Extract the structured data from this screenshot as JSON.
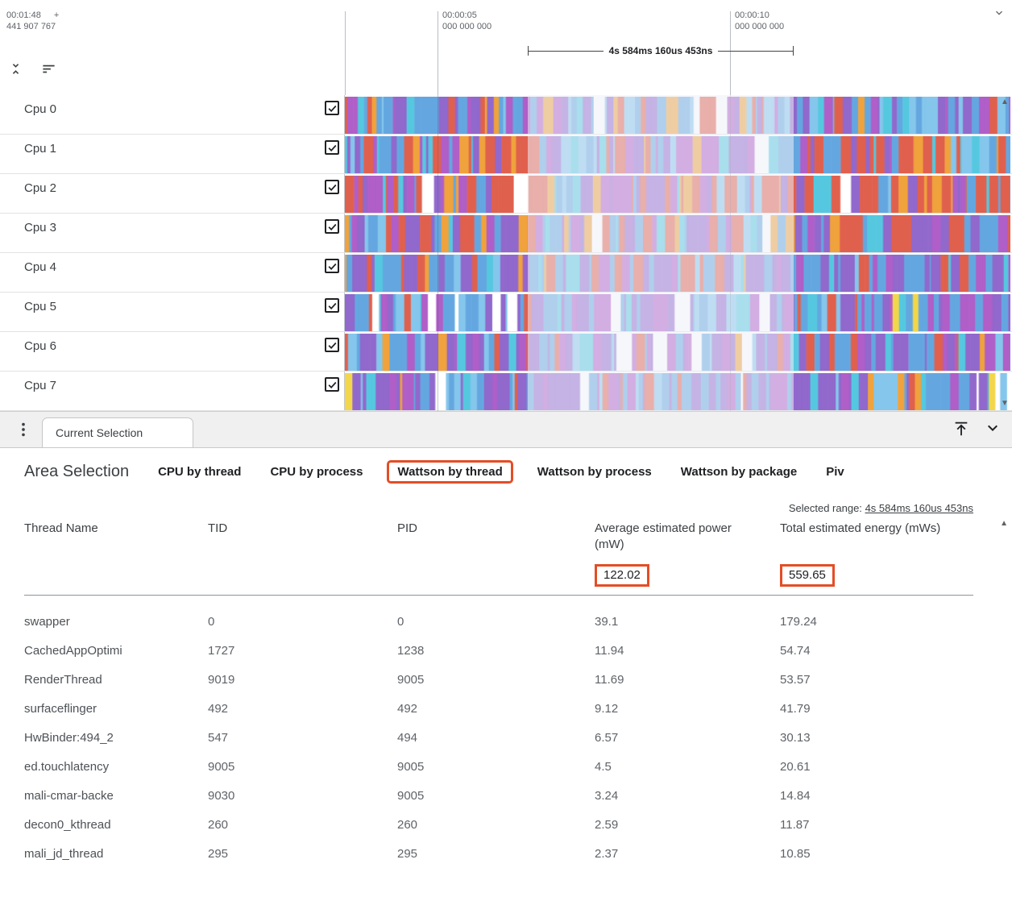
{
  "accent": "#e44d26",
  "icons": {
    "scroll_up": "▲",
    "scroll_down": "▼"
  },
  "timeline": {
    "origin_time": "00:01:48",
    "origin_plus": "+",
    "origin_ns": "441 907 767",
    "ticks": [
      {
        "time": "00:00:05",
        "ns": "000 000 000"
      },
      {
        "time": "00:00:10",
        "ns": "000 000 000"
      }
    ],
    "range_label": "4s 584ms 160us 453ns"
  },
  "tracks": {
    "palette": [
      "#64a7e0",
      "#85c6ec",
      "#9168cc",
      "#b05ec8",
      "#e0604e",
      "#f0a23c",
      "#55c8e0",
      "#f2d64b",
      "#ffffff"
    ],
    "rows": [
      {
        "label": "Cpu 0",
        "checked": true,
        "seed": 101,
        "weights": [
          28,
          14,
          18,
          10,
          12,
          8,
          8,
          0,
          2
        ]
      },
      {
        "label": "Cpu 1",
        "checked": true,
        "seed": 202,
        "weights": [
          20,
          10,
          20,
          12,
          24,
          6,
          6,
          0,
          2
        ]
      },
      {
        "label": "Cpu 2",
        "checked": true,
        "seed": 303,
        "weights": [
          16,
          6,
          20,
          12,
          28,
          10,
          6,
          0,
          2
        ]
      },
      {
        "label": "Cpu 3",
        "checked": true,
        "seed": 404,
        "weights": [
          20,
          10,
          22,
          12,
          18,
          8,
          8,
          0,
          2
        ]
      },
      {
        "label": "Cpu 4",
        "checked": true,
        "seed": 505,
        "weights": [
          24,
          10,
          24,
          14,
          14,
          5,
          8,
          0,
          1
        ]
      },
      {
        "label": "Cpu 5",
        "checked": true,
        "seed": 606,
        "weights": [
          26,
          10,
          28,
          14,
          6,
          2,
          8,
          2,
          6
        ]
      },
      {
        "label": "Cpu 6",
        "checked": true,
        "seed": 707,
        "weights": [
          22,
          10,
          28,
          16,
          10,
          5,
          5,
          0,
          4
        ]
      },
      {
        "label": "Cpu 7",
        "checked": true,
        "seed": 808,
        "weights": [
          20,
          10,
          28,
          14,
          8,
          3,
          5,
          3,
          10
        ]
      }
    ]
  },
  "tab_bar": {
    "current_tab": "Current Selection"
  },
  "detail": {
    "title": "Area Selection",
    "tabs": [
      {
        "label": "CPU by thread",
        "highlighted": false
      },
      {
        "label": "CPU by process",
        "highlighted": false
      },
      {
        "label": "Wattson by thread",
        "highlighted": true
      },
      {
        "label": "Wattson by process",
        "highlighted": false
      },
      {
        "label": "Wattson by package",
        "highlighted": false
      },
      {
        "label": "Piv",
        "highlighted": false
      }
    ],
    "selected_range": {
      "label": "Selected range:",
      "value": "4s 584ms 160us 453ns"
    },
    "table": {
      "columns": [
        "Thread Name",
        "TID",
        "PID",
        "Average estimated power (mW)",
        "Total estimated energy (mWs)"
      ],
      "totals": {
        "avg_power": "122.02",
        "total_energy": "559.65"
      },
      "rows": [
        {
          "thread": "swapper",
          "tid": "0",
          "pid": "0",
          "avg_power": "39.1",
          "total_energy": "179.24"
        },
        {
          "thread": "CachedAppOptimi",
          "tid": "1727",
          "pid": "1238",
          "avg_power": "11.94",
          "total_energy": "54.74"
        },
        {
          "thread": "RenderThread",
          "tid": "9019",
          "pid": "9005",
          "avg_power": "11.69",
          "total_energy": "53.57"
        },
        {
          "thread": "surfaceflinger",
          "tid": "492",
          "pid": "492",
          "avg_power": "9.12",
          "total_energy": "41.79"
        },
        {
          "thread": "HwBinder:494_2",
          "tid": "547",
          "pid": "494",
          "avg_power": "6.57",
          "total_energy": "30.13"
        },
        {
          "thread": "ed.touchlatency",
          "tid": "9005",
          "pid": "9005",
          "avg_power": "4.5",
          "total_energy": "20.61"
        },
        {
          "thread": "mali-cmar-backe",
          "tid": "9030",
          "pid": "9005",
          "avg_power": "3.24",
          "total_energy": "14.84"
        },
        {
          "thread": "decon0_kthread",
          "tid": "260",
          "pid": "260",
          "avg_power": "2.59",
          "total_energy": "11.87"
        },
        {
          "thread": "mali_jd_thread",
          "tid": "295",
          "pid": "295",
          "avg_power": "2.37",
          "total_energy": "10.85"
        }
      ]
    }
  }
}
